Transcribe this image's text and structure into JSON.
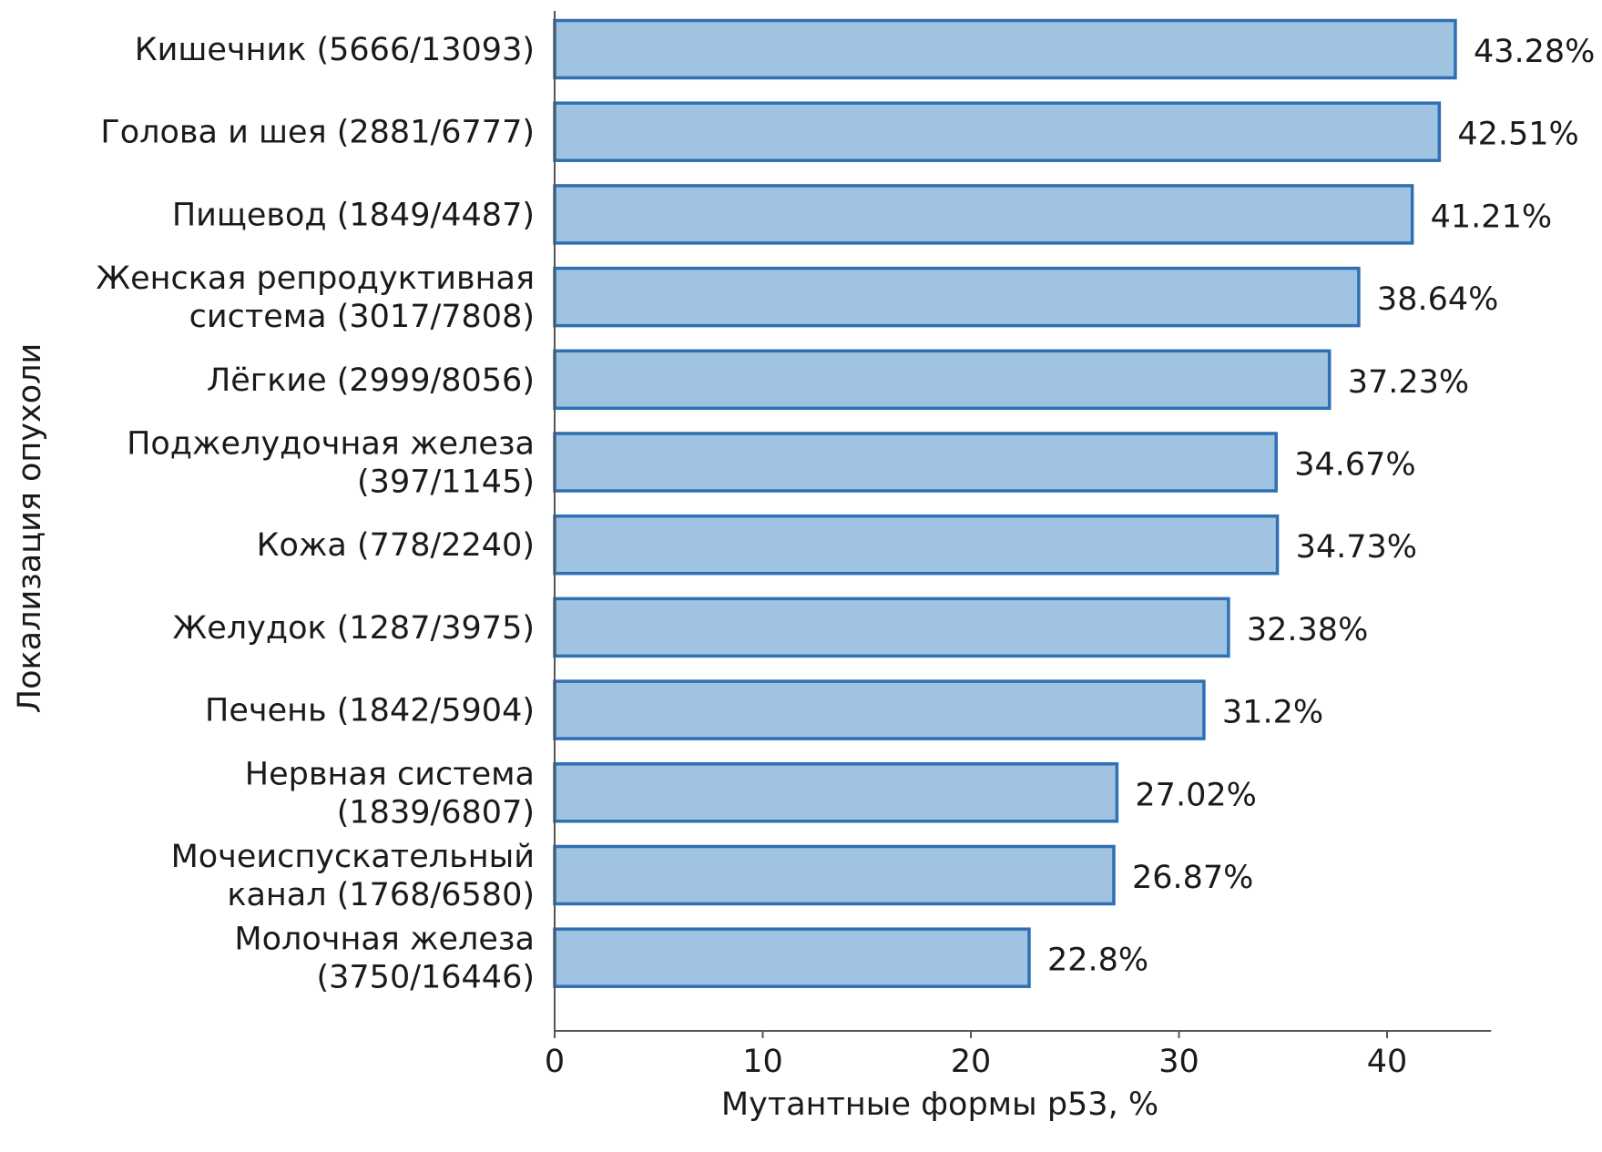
{
  "chart_data": {
    "type": "bar",
    "orientation": "horizontal",
    "xlabel": "Мутантные формы p53, %",
    "ylabel": "Локализация опухоли",
    "xlim": [
      0,
      45
    ],
    "xticks": [
      "0",
      "10",
      "20",
      "30",
      "40"
    ],
    "grid": false,
    "categories": [
      [
        "Кишечник (5666/13093)"
      ],
      [
        "Голова и шея (2881/6777)"
      ],
      [
        "Пищевод (1849/4487)"
      ],
      [
        "Женская репродуктивная",
        "система (3017/7808)"
      ],
      [
        "Лёгкие (2999/8056)"
      ],
      [
        "Поджелудочная железа",
        "(397/1145)"
      ],
      [
        "Кожа (778/2240)"
      ],
      [
        "Желудок (1287/3975)"
      ],
      [
        "Печень (1842/5904)"
      ],
      [
        "Нервная система",
        "(1839/6807)"
      ],
      [
        "Мочеиспускательный",
        "канал (1768/6580)"
      ],
      [
        "Молочная железа",
        "(3750/16446)"
      ]
    ],
    "values": [
      43.28,
      42.51,
      41.21,
      38.64,
      37.23,
      34.67,
      34.73,
      32.38,
      31.2,
      27.02,
      26.87,
      22.8
    ],
    "value_labels": [
      "43.28%",
      "42.51%",
      "41.21%",
      "38.64%",
      "37.23%",
      "34.67%",
      "34.73%",
      "32.38%",
      "31.2%",
      "27.02%",
      "26.87%",
      "22.8%"
    ],
    "colors": {
      "bar_fill": "#9fc3e0",
      "bar_stroke": "#2f6fb3",
      "axis": "#555555",
      "text": "#1a1a1a"
    }
  }
}
